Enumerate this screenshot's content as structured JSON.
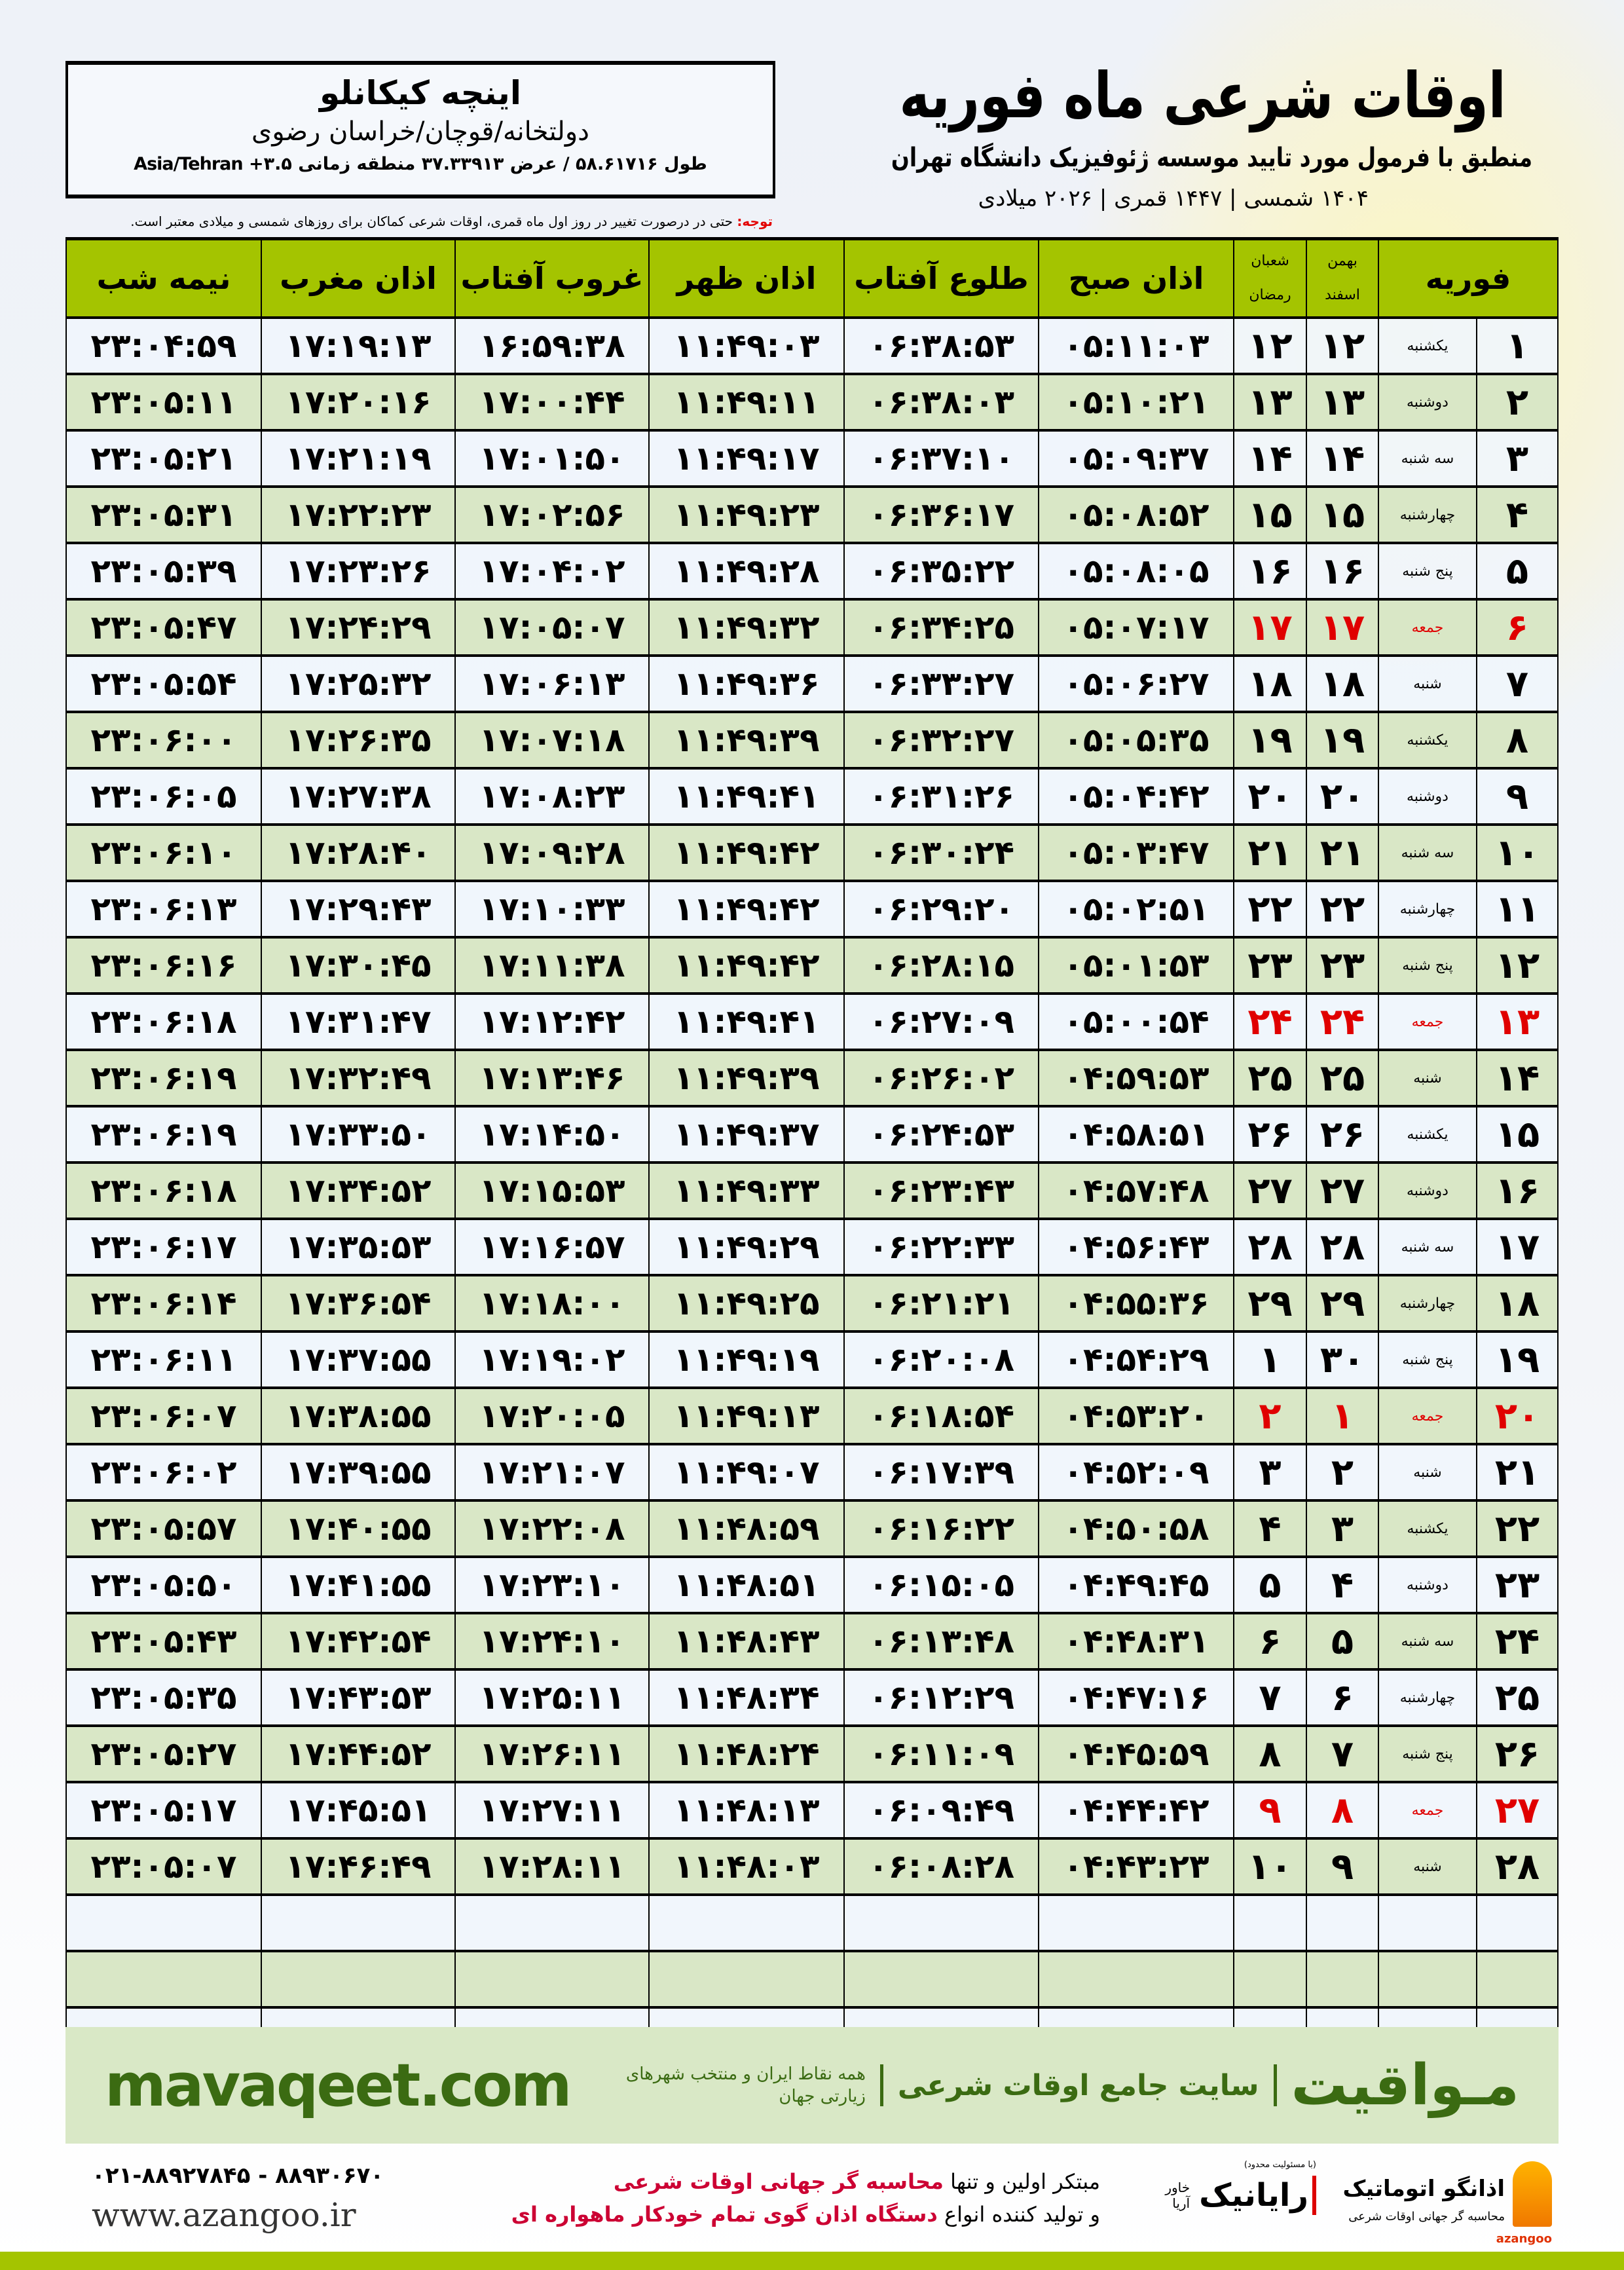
{
  "location": {
    "name": "اینچه کیکانلو",
    "region": "دولتخانه/قوچان/خراسان رضوی",
    "coords": "طول ۵۸.۶۱۷۱۶ / عرض ۳۷.۳۳۹۱۳ منطقه زمانی ۳.۵+ Asia/Tehran"
  },
  "header": {
    "title": "اوقات شرعی ماه فوریه",
    "subtitle": "منطبق با فرمول مورد تایید موسسه ژئوفیزیک دانشگاه تهران",
    "dates": "۱۴۰۴ شمسی | ۱۴۴۷ قمری | ۲۰۲۶ میلادی"
  },
  "note": {
    "label": "توجه:",
    "text": " حتی در درصورت تغییر در روز اول ماه قمری، اوقات شرعی کماکان برای روزهای شمسی و میلادی معتبر است."
  },
  "columns": {
    "month": "فوریه",
    "solar_top": "بهمن",
    "solar_bottom": "اسفند",
    "lunar_top": "شعبان",
    "lunar_bottom": "رمضان",
    "sobh": "اذان صبح",
    "tolu": "طلوع آفتاب",
    "zohr": "اذان ظهر",
    "ghorub": "غروب آفتاب",
    "maghrib": "اذان مغرب",
    "nimeh": "نیمه شب"
  },
  "colors": {
    "header_green": "#a4c400",
    "row_green": "#d9e7c6",
    "friday_red": "#e00000",
    "brand_green": "#3b6b12"
  },
  "rows": [
    {
      "day": "۱",
      "weekday": "یکشنبه",
      "solar": "۱۲",
      "lunar": "۱۲",
      "sobh": "۰۵:۱۱:۰۳",
      "tolu": "۰۶:۳۸:۵۳",
      "zohr": "۱۱:۴۹:۰۳",
      "ghorub": "۱۶:۵۹:۳۸",
      "maghrib": "۱۷:۱۹:۱۳",
      "nimeh": "۲۳:۰۴:۵۹",
      "friday": false
    },
    {
      "day": "۲",
      "weekday": "دوشنبه",
      "solar": "۱۳",
      "lunar": "۱۳",
      "sobh": "۰۵:۱۰:۲۱",
      "tolu": "۰۶:۳۸:۰۳",
      "zohr": "۱۱:۴۹:۱۱",
      "ghorub": "۱۷:۰۰:۴۴",
      "maghrib": "۱۷:۲۰:۱۶",
      "nimeh": "۲۳:۰۵:۱۱",
      "friday": false
    },
    {
      "day": "۳",
      "weekday": "سه شنبه",
      "solar": "۱۴",
      "lunar": "۱۴",
      "sobh": "۰۵:۰۹:۳۷",
      "tolu": "۰۶:۳۷:۱۰",
      "zohr": "۱۱:۴۹:۱۷",
      "ghorub": "۱۷:۰۱:۵۰",
      "maghrib": "۱۷:۲۱:۱۹",
      "nimeh": "۲۳:۰۵:۲۱",
      "friday": false
    },
    {
      "day": "۴",
      "weekday": "چهارشنبه",
      "solar": "۱۵",
      "lunar": "۱۵",
      "sobh": "۰۵:۰۸:۵۲",
      "tolu": "۰۶:۳۶:۱۷",
      "zohr": "۱۱:۴۹:۲۳",
      "ghorub": "۱۷:۰۲:۵۶",
      "maghrib": "۱۷:۲۲:۲۳",
      "nimeh": "۲۳:۰۵:۳۱",
      "friday": false
    },
    {
      "day": "۵",
      "weekday": "پنج شنبه",
      "solar": "۱۶",
      "lunar": "۱۶",
      "sobh": "۰۵:۰۸:۰۵",
      "tolu": "۰۶:۳۵:۲۲",
      "zohr": "۱۱:۴۹:۲۸",
      "ghorub": "۱۷:۰۴:۰۲",
      "maghrib": "۱۷:۲۳:۲۶",
      "nimeh": "۲۳:۰۵:۳۹",
      "friday": false
    },
    {
      "day": "۶",
      "weekday": "جمعه",
      "solar": "۱۷",
      "lunar": "۱۷",
      "sobh": "۰۵:۰۷:۱۷",
      "tolu": "۰۶:۳۴:۲۵",
      "zohr": "۱۱:۴۹:۳۲",
      "ghorub": "۱۷:۰۵:۰۷",
      "maghrib": "۱۷:۲۴:۲۹",
      "nimeh": "۲۳:۰۵:۴۷",
      "friday": true
    },
    {
      "day": "۷",
      "weekday": "شنبه",
      "solar": "۱۸",
      "lunar": "۱۸",
      "sobh": "۰۵:۰۶:۲۷",
      "tolu": "۰۶:۳۳:۲۷",
      "zohr": "۱۱:۴۹:۳۶",
      "ghorub": "۱۷:۰۶:۱۳",
      "maghrib": "۱۷:۲۵:۳۲",
      "nimeh": "۲۳:۰۵:۵۴",
      "friday": false
    },
    {
      "day": "۸",
      "weekday": "یکشنبه",
      "solar": "۱۹",
      "lunar": "۱۹",
      "sobh": "۰۵:۰۵:۳۵",
      "tolu": "۰۶:۳۲:۲۷",
      "zohr": "۱۱:۴۹:۳۹",
      "ghorub": "۱۷:۰۷:۱۸",
      "maghrib": "۱۷:۲۶:۳۵",
      "nimeh": "۲۳:۰۶:۰۰",
      "friday": false
    },
    {
      "day": "۹",
      "weekday": "دوشنبه",
      "solar": "۲۰",
      "lunar": "۲۰",
      "sobh": "۰۵:۰۴:۴۲",
      "tolu": "۰۶:۳۱:۲۶",
      "zohr": "۱۱:۴۹:۴۱",
      "ghorub": "۱۷:۰۸:۲۳",
      "maghrib": "۱۷:۲۷:۳۸",
      "nimeh": "۲۳:۰۶:۰۵",
      "friday": false
    },
    {
      "day": "۱۰",
      "weekday": "سه شنبه",
      "solar": "۲۱",
      "lunar": "۲۱",
      "sobh": "۰۵:۰۳:۴۷",
      "tolu": "۰۶:۳۰:۲۴",
      "zohr": "۱۱:۴۹:۴۲",
      "ghorub": "۱۷:۰۹:۲۸",
      "maghrib": "۱۷:۲۸:۴۰",
      "nimeh": "۲۳:۰۶:۱۰",
      "friday": false
    },
    {
      "day": "۱۱",
      "weekday": "چهارشنبه",
      "solar": "۲۲",
      "lunar": "۲۲",
      "sobh": "۰۵:۰۲:۵۱",
      "tolu": "۰۶:۲۹:۲۰",
      "zohr": "۱۱:۴۹:۴۲",
      "ghorub": "۱۷:۱۰:۳۳",
      "maghrib": "۱۷:۲۹:۴۳",
      "nimeh": "۲۳:۰۶:۱۳",
      "friday": false
    },
    {
      "day": "۱۲",
      "weekday": "پنج شنبه",
      "solar": "۲۳",
      "lunar": "۲۳",
      "sobh": "۰۵:۰۱:۵۳",
      "tolu": "۰۶:۲۸:۱۵",
      "zohr": "۱۱:۴۹:۴۲",
      "ghorub": "۱۷:۱۱:۳۸",
      "maghrib": "۱۷:۳۰:۴۵",
      "nimeh": "۲۳:۰۶:۱۶",
      "friday": false
    },
    {
      "day": "۱۳",
      "weekday": "جمعه",
      "solar": "۲۴",
      "lunar": "۲۴",
      "sobh": "۰۵:۰۰:۵۴",
      "tolu": "۰۶:۲۷:۰۹",
      "zohr": "۱۱:۴۹:۴۱",
      "ghorub": "۱۷:۱۲:۴۲",
      "maghrib": "۱۷:۳۱:۴۷",
      "nimeh": "۲۳:۰۶:۱۸",
      "friday": true
    },
    {
      "day": "۱۴",
      "weekday": "شنبه",
      "solar": "۲۵",
      "lunar": "۲۵",
      "sobh": "۰۴:۵۹:۵۳",
      "tolu": "۰۶:۲۶:۰۲",
      "zohr": "۱۱:۴۹:۳۹",
      "ghorub": "۱۷:۱۳:۴۶",
      "maghrib": "۱۷:۳۲:۴۹",
      "nimeh": "۲۳:۰۶:۱۹",
      "friday": false
    },
    {
      "day": "۱۵",
      "weekday": "یکشنبه",
      "solar": "۲۶",
      "lunar": "۲۶",
      "sobh": "۰۴:۵۸:۵۱",
      "tolu": "۰۶:۲۴:۵۳",
      "zohr": "۱۱:۴۹:۳۷",
      "ghorub": "۱۷:۱۴:۵۰",
      "maghrib": "۱۷:۳۳:۵۰",
      "nimeh": "۲۳:۰۶:۱۹",
      "friday": false
    },
    {
      "day": "۱۶",
      "weekday": "دوشنبه",
      "solar": "۲۷",
      "lunar": "۲۷",
      "sobh": "۰۴:۵۷:۴۸",
      "tolu": "۰۶:۲۳:۴۳",
      "zohr": "۱۱:۴۹:۳۳",
      "ghorub": "۱۷:۱۵:۵۳",
      "maghrib": "۱۷:۳۴:۵۲",
      "nimeh": "۲۳:۰۶:۱۸",
      "friday": false
    },
    {
      "day": "۱۷",
      "weekday": "سه شنبه",
      "solar": "۲۸",
      "lunar": "۲۸",
      "sobh": "۰۴:۵۶:۴۳",
      "tolu": "۰۶:۲۲:۳۳",
      "zohr": "۱۱:۴۹:۲۹",
      "ghorub": "۱۷:۱۶:۵۷",
      "maghrib": "۱۷:۳۵:۵۳",
      "nimeh": "۲۳:۰۶:۱۷",
      "friday": false
    },
    {
      "day": "۱۸",
      "weekday": "چهارشنبه",
      "solar": "۲۹",
      "lunar": "۲۹",
      "sobh": "۰۴:۵۵:۳۶",
      "tolu": "۰۶:۲۱:۲۱",
      "zohr": "۱۱:۴۹:۲۵",
      "ghorub": "۱۷:۱۸:۰۰",
      "maghrib": "۱۷:۳۶:۵۴",
      "nimeh": "۲۳:۰۶:۱۴",
      "friday": false
    },
    {
      "day": "۱۹",
      "weekday": "پنج شنبه",
      "solar": "۳۰",
      "lunar": "۱",
      "sobh": "۰۴:۵۴:۲۹",
      "tolu": "۰۶:۲۰:۰۸",
      "zohr": "۱۱:۴۹:۱۹",
      "ghorub": "۱۷:۱۹:۰۲",
      "maghrib": "۱۷:۳۷:۵۵",
      "nimeh": "۲۳:۰۶:۱۱",
      "friday": false
    },
    {
      "day": "۲۰",
      "weekday": "جمعه",
      "solar": "۱",
      "lunar": "۲",
      "sobh": "۰۴:۵۳:۲۰",
      "tolu": "۰۶:۱۸:۵۴",
      "zohr": "۱۱:۴۹:۱۳",
      "ghorub": "۱۷:۲۰:۰۵",
      "maghrib": "۱۷:۳۸:۵۵",
      "nimeh": "۲۳:۰۶:۰۷",
      "friday": true
    },
    {
      "day": "۲۱",
      "weekday": "شنبه",
      "solar": "۲",
      "lunar": "۳",
      "sobh": "۰۴:۵۲:۰۹",
      "tolu": "۰۶:۱۷:۳۹",
      "zohr": "۱۱:۴۹:۰۷",
      "ghorub": "۱۷:۲۱:۰۷",
      "maghrib": "۱۷:۳۹:۵۵",
      "nimeh": "۲۳:۰۶:۰۲",
      "friday": false
    },
    {
      "day": "۲۲",
      "weekday": "یکشنبه",
      "solar": "۳",
      "lunar": "۴",
      "sobh": "۰۴:۵۰:۵۸",
      "tolu": "۰۶:۱۶:۲۲",
      "zohr": "۱۱:۴۸:۵۹",
      "ghorub": "۱۷:۲۲:۰۸",
      "maghrib": "۱۷:۴۰:۵۵",
      "nimeh": "۲۳:۰۵:۵۷",
      "friday": false
    },
    {
      "day": "۲۳",
      "weekday": "دوشنبه",
      "solar": "۴",
      "lunar": "۵",
      "sobh": "۰۴:۴۹:۴۵",
      "tolu": "۰۶:۱۵:۰۵",
      "zohr": "۱۱:۴۸:۵۱",
      "ghorub": "۱۷:۲۳:۱۰",
      "maghrib": "۱۷:۴۱:۵۵",
      "nimeh": "۲۳:۰۵:۵۰",
      "friday": false
    },
    {
      "day": "۲۴",
      "weekday": "سه شنبه",
      "solar": "۵",
      "lunar": "۶",
      "sobh": "۰۴:۴۸:۳۱",
      "tolu": "۰۶:۱۳:۴۸",
      "zohr": "۱۱:۴۸:۴۳",
      "ghorub": "۱۷:۲۴:۱۰",
      "maghrib": "۱۷:۴۲:۵۴",
      "nimeh": "۲۳:۰۵:۴۳",
      "friday": false
    },
    {
      "day": "۲۵",
      "weekday": "چهارشنبه",
      "solar": "۶",
      "lunar": "۷",
      "sobh": "۰۴:۴۷:۱۶",
      "tolu": "۰۶:۱۲:۲۹",
      "zohr": "۱۱:۴۸:۳۴",
      "ghorub": "۱۷:۲۵:۱۱",
      "maghrib": "۱۷:۴۳:۵۳",
      "nimeh": "۲۳:۰۵:۳۵",
      "friday": false
    },
    {
      "day": "۲۶",
      "weekday": "پنج شنبه",
      "solar": "۷",
      "lunar": "۸",
      "sobh": "۰۴:۴۵:۵۹",
      "tolu": "۰۶:۱۱:۰۹",
      "zohr": "۱۱:۴۸:۲۴",
      "ghorub": "۱۷:۲۶:۱۱",
      "maghrib": "۱۷:۴۴:۵۲",
      "nimeh": "۲۳:۰۵:۲۷",
      "friday": false
    },
    {
      "day": "۲۷",
      "weekday": "جمعه",
      "solar": "۸",
      "lunar": "۹",
      "sobh": "۰۴:۴۴:۴۲",
      "tolu": "۰۶:۰۹:۴۹",
      "zohr": "۱۱:۴۸:۱۳",
      "ghorub": "۱۷:۲۷:۱۱",
      "maghrib": "۱۷:۴۵:۵۱",
      "nimeh": "۲۳:۰۵:۱۷",
      "friday": true
    },
    {
      "day": "۲۸",
      "weekday": "شنبه",
      "solar": "۹",
      "lunar": "۱۰",
      "sobh": "۰۴:۴۳:۲۳",
      "tolu": "۰۶:۰۸:۲۸",
      "zohr": "۱۱:۴۸:۰۳",
      "ghorub": "۱۷:۲۸:۱۱",
      "maghrib": "۱۷:۴۶:۴۹",
      "nimeh": "۲۳:۰۵:۰۷",
      "friday": false
    }
  ],
  "footer": {
    "brand": "مـواقیت",
    "slogan": "سایت جامع اوقات شرعی",
    "slogan2": "همه نقاط ایران و منتخب شهرهای زیارتی جهان",
    "site": "mavaqeet.com"
  },
  "sponsors": {
    "azangoo_name": "اذانگو اتوماتیک",
    "azangoo_sub": "محاسبه گر جهانی اوقات شرعی",
    "azangoo_en": "azangoo",
    "rayanik_ltd": "(با مسئولیت محدود)",
    "rayanik_name": "رایانیک",
    "rayanik_aria": "خاور آریا",
    "promo1_a": "مبتکر اولین و تنها ",
    "promo1_b": "محاسبه گر جهانی اوقات شرعی",
    "promo2_a": "و تولید کننده انواع ",
    "promo2_b": "دستگاه اذان گوی تمام خودکار ماهواره ای",
    "phone": "۰۲۱-۸۸۹۲۷۸۴۵ - ۸۸۹۳۰۶۷۰",
    "web": "www.azangoo.ir"
  }
}
